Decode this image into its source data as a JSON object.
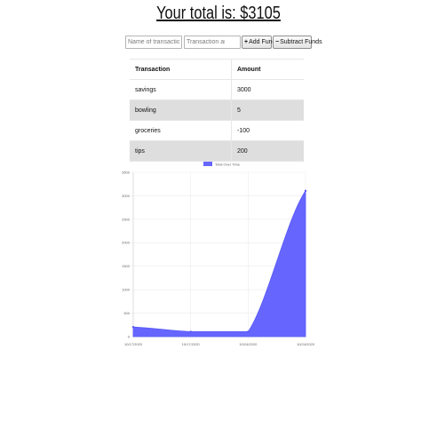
{
  "header": {
    "total_text": "Your total is: $3105"
  },
  "form": {
    "name_placeholder": "Name of transaction",
    "amount_placeholder": "Transaction amount",
    "add_label": "Add Funds",
    "subtract_label": "Subtract Funds",
    "add_icon": "plus-icon",
    "subtract_icon": "minus-icon"
  },
  "table": {
    "headers": [
      "Transaction",
      "Amount"
    ],
    "rows": [
      {
        "name": "savings",
        "amount": "3000"
      },
      {
        "name": "bowling",
        "amount": "5"
      },
      {
        "name": "groceries",
        "amount": "-100"
      },
      {
        "name": "tips",
        "amount": "200"
      }
    ]
  },
  "chart_data": {
    "type": "area",
    "legend": "Total Over Time",
    "legend_position": "top",
    "x": [
      "10/17/2020",
      "10/17/2020",
      "10/24/2020",
      "10/24/2020"
    ],
    "values": [
      205,
      105,
      105,
      3105
    ],
    "ylim": [
      0,
      3500
    ],
    "y_ticks": [
      0,
      500,
      1000,
      1500,
      2000,
      2500,
      3000,
      3500
    ],
    "grid": true,
    "fill_color": "#6666ff",
    "line_color": "#5959f5"
  }
}
